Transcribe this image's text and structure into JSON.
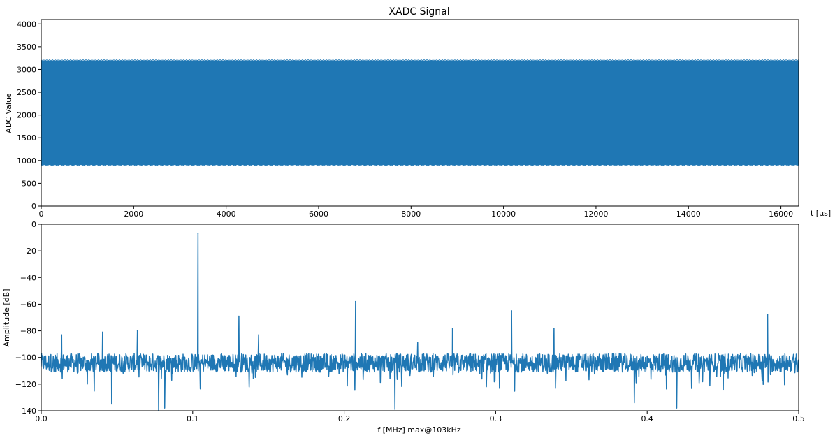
{
  "chart_data": [
    {
      "type": "area",
      "title": "XADC Signal",
      "xlabel": "t [μs]",
      "ylabel": "ADC Value",
      "xlim": [
        0,
        16384
      ],
      "ylim": [
        0,
        4096
      ],
      "xticks": [
        "0",
        "2000",
        "4000",
        "6000",
        "8000",
        "10000",
        "12000",
        "14000",
        "16000"
      ],
      "yticks": [
        "0",
        "500",
        "1000",
        "1500",
        "2000",
        "2500",
        "3000",
        "3500",
        "4000"
      ],
      "series": [
        {
          "upper": 3190,
          "lower": 905
        }
      ],
      "color": "#1f77b4",
      "grid": false
    },
    {
      "type": "line",
      "title": "",
      "xlabel": "f [MHz] max@103kHz",
      "ylabel": "Amplitude [dB]",
      "xlim": [
        0,
        0.5
      ],
      "ylim": [
        -140,
        0
      ],
      "xticks": [
        "0.0",
        "0.1",
        "0.2",
        "0.3",
        "0.4",
        "0.5"
      ],
      "yticks": [
        "−140",
        "−120",
        "−100",
        "−80",
        "−60",
        "−40",
        "−20",
        "0"
      ],
      "noise_floor": -104,
      "peaks": [
        {
          "x": 0.0135,
          "y": -83
        },
        {
          "x": 0.0405,
          "y": -81
        },
        {
          "x": 0.0635,
          "y": -80
        },
        {
          "x": 0.1035,
          "y": -7
        },
        {
          "x": 0.1305,
          "y": -69
        },
        {
          "x": 0.1435,
          "y": -83
        },
        {
          "x": 0.2075,
          "y": -58
        },
        {
          "x": 0.2485,
          "y": -89
        },
        {
          "x": 0.2715,
          "y": -78
        },
        {
          "x": 0.3105,
          "y": -65
        },
        {
          "x": 0.3385,
          "y": -78
        },
        {
          "x": 0.4795,
          "y": -68
        }
      ],
      "dips": [
        {
          "x": 0.0465,
          "y": -135
        },
        {
          "x": 0.0775,
          "y": -140
        },
        {
          "x": 0.0815,
          "y": -138
        },
        {
          "x": 0.2335,
          "y": -139
        },
        {
          "x": 0.3915,
          "y": -134
        },
        {
          "x": 0.4195,
          "y": -138
        }
      ],
      "color": "#1f77b4",
      "grid": false
    }
  ]
}
